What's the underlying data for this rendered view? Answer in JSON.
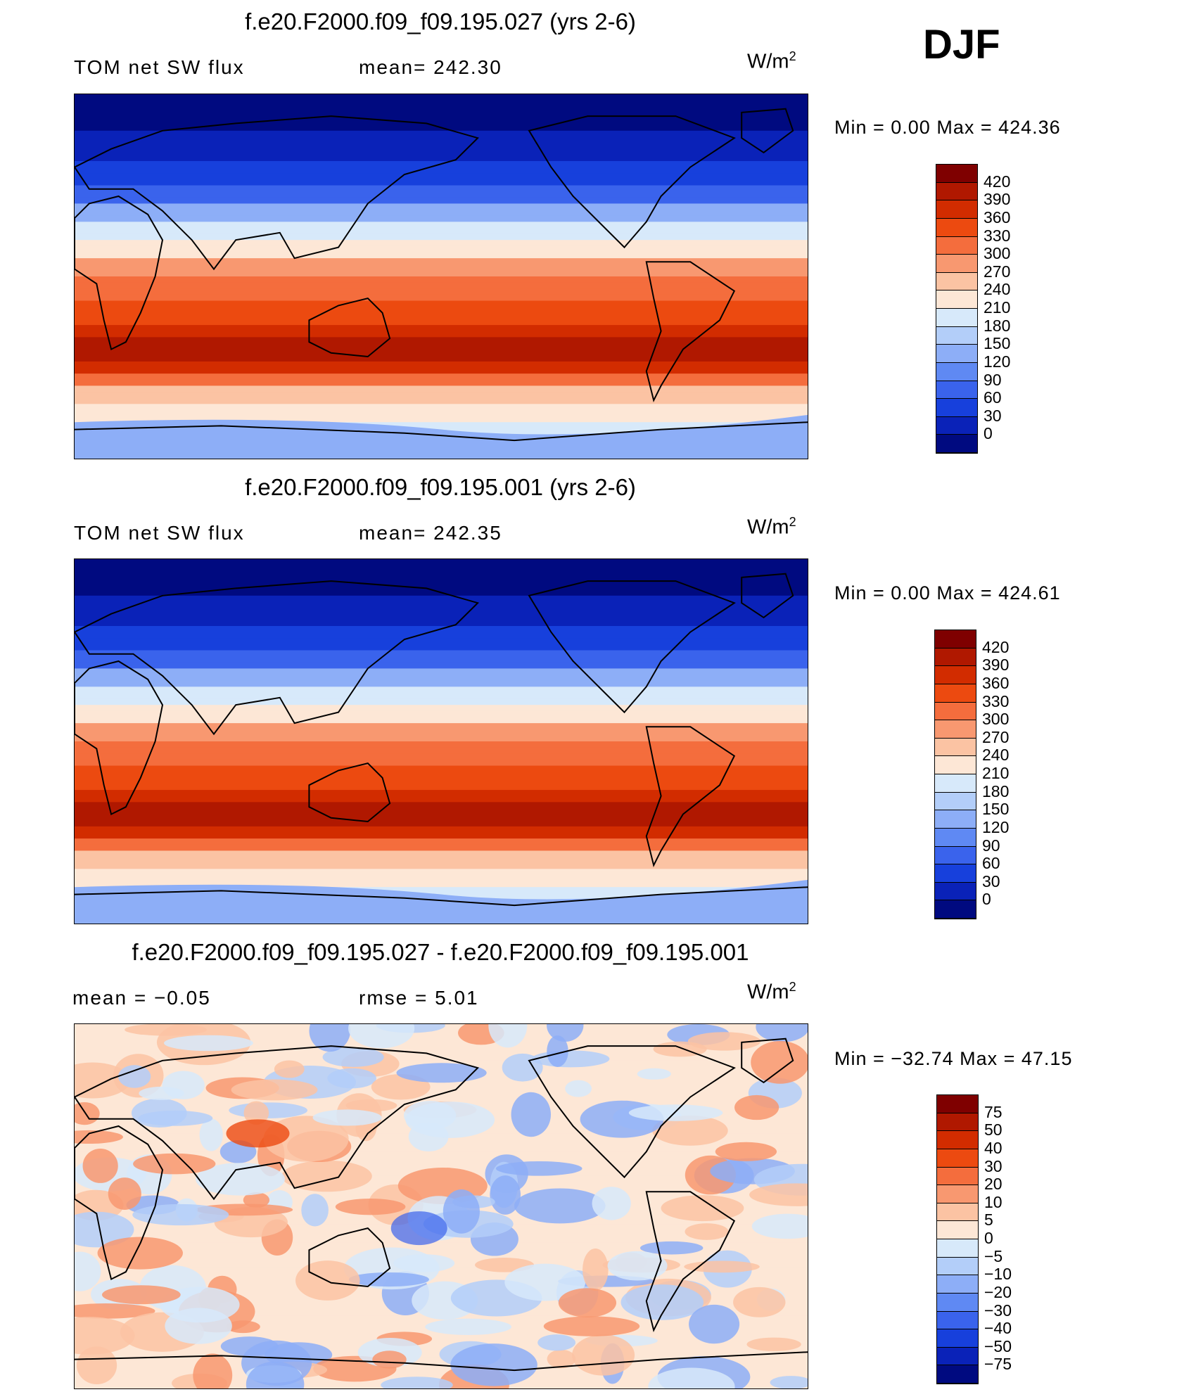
{
  "season": "DJF",
  "units_base": "W/m",
  "units_exp": "2",
  "panels": [
    {
      "title": "f.e20.F2000.f09_f09.195.027 (yrs 2-6)",
      "left_label": "TOM net SW flux",
      "stat_label": "mean= 242.30",
      "min_max": "Min =    0.00 Max =  424.36",
      "map_kind": "field"
    },
    {
      "title": "f.e20.F2000.f09_f09.195.001 (yrs 2-6)",
      "left_label": "TOM net SW flux",
      "stat_label": "mean= 242.35",
      "min_max": "Min =    0.00 Max =  424.61",
      "map_kind": "field"
    },
    {
      "title": "f.e20.F2000.f09_f09.195.027 - f.e20.F2000.f09_f09.195.001",
      "left_label": "mean =   −0.05",
      "stat_label": "rmse =    5.01",
      "min_max": "Min = −32.74 Max =   47.15",
      "map_kind": "diff"
    }
  ],
  "colorbars": {
    "field": {
      "labels": [
        "420",
        "390",
        "360",
        "330",
        "300",
        "270",
        "240",
        "210",
        "180",
        "150",
        "120",
        "90",
        "60",
        "30",
        "0"
      ],
      "colors": [
        "#7f0000",
        "#b01800",
        "#d22c00",
        "#ec4a10",
        "#f46d3d",
        "#f89870",
        "#fbc3a3",
        "#fde7d6",
        "#d7e9fa",
        "#b3cef9",
        "#8daef7",
        "#5f89f3",
        "#3a63ec",
        "#1740dc",
        "#0a22b8",
        "#000a80"
      ]
    },
    "diff": {
      "labels": [
        "75",
        "50",
        "40",
        "30",
        "20",
        "10",
        "5",
        "0",
        "−5",
        "−10",
        "−20",
        "−30",
        "−40",
        "−50",
        "−75"
      ],
      "colors": [
        "#7f0000",
        "#b01800",
        "#d22c00",
        "#ec4a10",
        "#f46d3d",
        "#f89870",
        "#fbc3a3",
        "#fde7d6",
        "#d7e9fa",
        "#b3cef9",
        "#8daef7",
        "#5f89f3",
        "#3a63ec",
        "#1740dc",
        "#0a22b8",
        "#000a80"
      ]
    }
  }
}
